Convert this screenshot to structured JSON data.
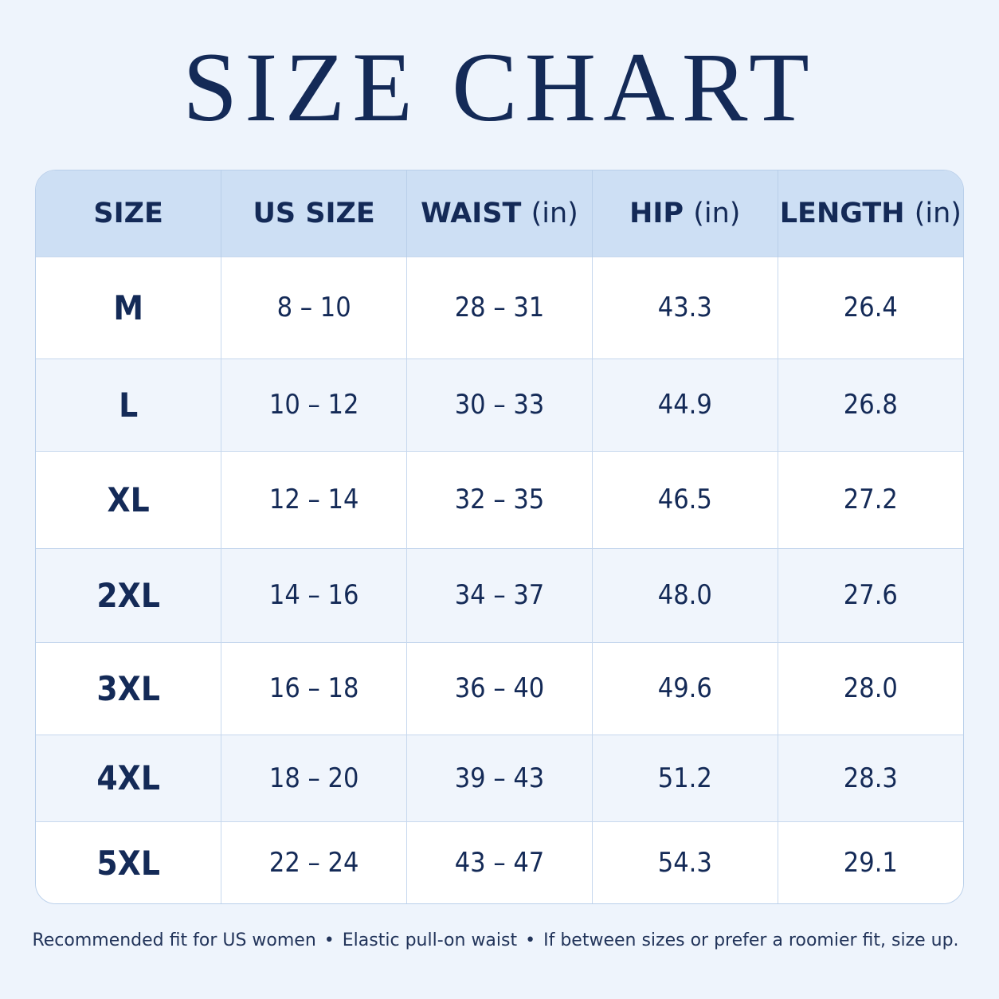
{
  "title": "SIZE CHART",
  "table": {
    "headers": [
      {
        "main": "SIZE",
        "unit": ""
      },
      {
        "main": "US SIZE",
        "unit": ""
      },
      {
        "main": "WAIST",
        "unit": "(in)"
      },
      {
        "main": "HIP",
        "unit": "(in)"
      },
      {
        "main": "LENGTH",
        "unit": "(in)"
      }
    ],
    "rows": [
      {
        "size": "M",
        "us_size": "8 – 10",
        "waist": "28 – 31",
        "hip": "43.3",
        "length": "26.4"
      },
      {
        "size": "L",
        "us_size": "10 – 12",
        "waist": "30 – 33",
        "hip": "44.9",
        "length": "26.8"
      },
      {
        "size": "XL",
        "us_size": "12 – 14",
        "waist": "32 – 35",
        "hip": "46.5",
        "length": "27.2"
      },
      {
        "size": "2XL",
        "us_size": "14 – 16",
        "waist": "34 – 37",
        "hip": "48.0",
        "length": "27.6"
      },
      {
        "size": "3XL",
        "us_size": "16 – 18",
        "waist": "36 – 40",
        "hip": "49.6",
        "length": "28.0"
      },
      {
        "size": "4XL",
        "us_size": "18 – 20",
        "waist": "39 – 43",
        "hip": "51.2",
        "length": "28.3"
      },
      {
        "size": "5XL",
        "us_size": "22 – 24",
        "waist": "43 – 47",
        "hip": "54.3",
        "length": "29.1"
      }
    ]
  },
  "footnote": {
    "items": [
      "Recommended fit for US women",
      "Elastic pull-on waist",
      "If between sizes or prefer a roomier fit, size up."
    ],
    "separator": "•"
  },
  "colors": {
    "background": "#eef4fc",
    "header_fill": "#cddff4",
    "text": "#142a57",
    "border": "#b9cfea"
  }
}
